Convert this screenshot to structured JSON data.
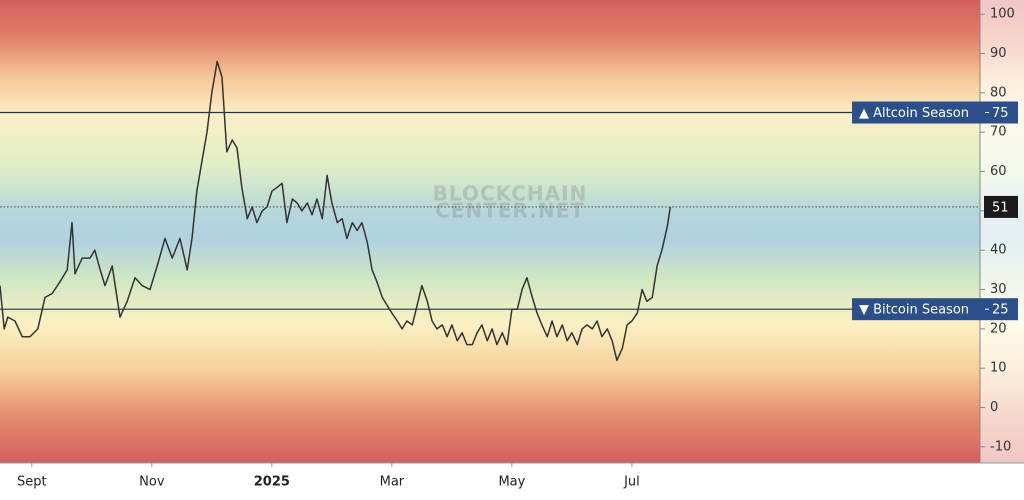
{
  "chart_data": {
    "type": "line",
    "watermark": [
      "BLOCKCHAIN",
      "CENTER.NET"
    ],
    "color": "#333333",
    "x": [
      7.47,
      7.54,
      7.6,
      7.72,
      7.84,
      7.97,
      8.1,
      8.22,
      8.34,
      8.47,
      8.59,
      8.67,
      8.72,
      8.84,
      8.97,
      9.05,
      9.14,
      9.22,
      9.34,
      9.47,
      9.59,
      9.72,
      9.84,
      9.97,
      10.09,
      10.22,
      10.34,
      10.47,
      10.59,
      10.67,
      10.75,
      10.84,
      10.92,
      11.0,
      11.09,
      11.17,
      11.25,
      11.34,
      11.42,
      11.5,
      11.59,
      11.67,
      11.75,
      11.84,
      11.92,
      12.0,
      12.09,
      12.17,
      12.25,
      12.34,
      12.42,
      12.5,
      12.59,
      12.67,
      12.75,
      12.84,
      12.92,
      13.0,
      13.09,
      13.17,
      13.25,
      13.34,
      13.42,
      13.5,
      13.59,
      13.67,
      13.75,
      13.84,
      13.92,
      14.0,
      14.09,
      14.17,
      14.25,
      14.34,
      14.42,
      14.5,
      14.59,
      14.67,
      14.75,
      14.84,
      14.92,
      15.0,
      15.09,
      15.17,
      15.25,
      15.34,
      15.42,
      15.5,
      15.59,
      15.67,
      15.75,
      15.84,
      15.92,
      16.0,
      16.09,
      16.17,
      16.25,
      16.34,
      16.42,
      16.5,
      16.59,
      16.67,
      16.75,
      16.84,
      16.92,
      17.0,
      17.09,
      17.17,
      17.25,
      17.34,
      17.42,
      17.5,
      17.59,
      17.67,
      17.75,
      17.84,
      17.92,
      18.0,
      18.09,
      18.17,
      18.25,
      18.34,
      18.42,
      18.5,
      18.59,
      18.64
    ],
    "values": [
      31,
      20,
      23,
      22,
      18,
      18,
      20,
      28,
      29,
      32,
      35,
      47,
      34,
      38,
      38,
      40,
      35,
      31,
      36,
      23,
      27,
      33,
      31,
      30,
      36,
      43,
      38,
      43,
      35,
      43,
      55,
      63,
      70,
      80,
      88,
      84,
      65,
      68,
      66,
      56,
      48,
      51,
      47,
      50,
      51,
      55,
      56,
      57,
      47,
      53,
      52,
      50,
      52,
      49,
      53,
      48,
      59,
      52,
      47,
      48,
      43,
      47,
      45,
      47,
      42,
      35,
      32,
      28,
      26,
      24,
      22,
      20,
      22,
      21,
      26,
      31,
      27,
      22,
      20,
      21,
      18,
      21,
      17,
      19,
      16,
      16,
      19,
      21,
      17,
      20,
      16,
      19,
      16,
      25,
      25,
      30,
      33,
      28,
      24,
      21,
      18,
      22,
      18,
      21,
      17,
      19,
      16,
      20,
      21,
      20,
      22,
      18,
      20,
      17,
      12,
      15,
      21,
      22,
      24,
      30,
      27,
      28,
      36,
      40,
      46,
      51
    ],
    "xlim": [
      7.47,
      23.8
    ],
    "xticks": [
      {
        "value": 8,
        "label": "Sept"
      },
      {
        "value": 10,
        "label": "Nov"
      },
      {
        "value": 12,
        "label": "2025"
      },
      {
        "value": 14,
        "label": "Mar"
      },
      {
        "value": 16,
        "label": "May"
      },
      {
        "value": 18,
        "label": "Jul"
      }
    ],
    "ylim": [
      -14.1,
      103.6
    ],
    "yticks": [
      -10,
      0,
      10,
      20,
      30,
      40,
      50,
      60,
      70,
      80,
      90,
      100
    ],
    "levels": [
      {
        "label": "▲ Altcoin Season",
        "value": 75
      },
      {
        "label": "▼ Bitcoin Season",
        "value": 25
      }
    ]
  }
}
